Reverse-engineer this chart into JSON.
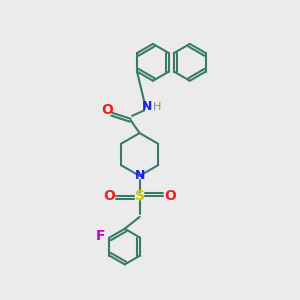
{
  "background_color": "#ebebeb",
  "bond_color": "#3a7a6a",
  "bond_width": 1.5,
  "atom_colors": {
    "N": "#2020ee",
    "O": "#ee2020",
    "S": "#cccc00",
    "F": "#cc00cc",
    "H": "#888888",
    "C": "#3a7a6a"
  },
  "figsize": [
    3.0,
    3.0
  ],
  "dpi": 100,
  "xlim": [
    0,
    10
  ],
  "ylim": [
    0,
    10
  ]
}
